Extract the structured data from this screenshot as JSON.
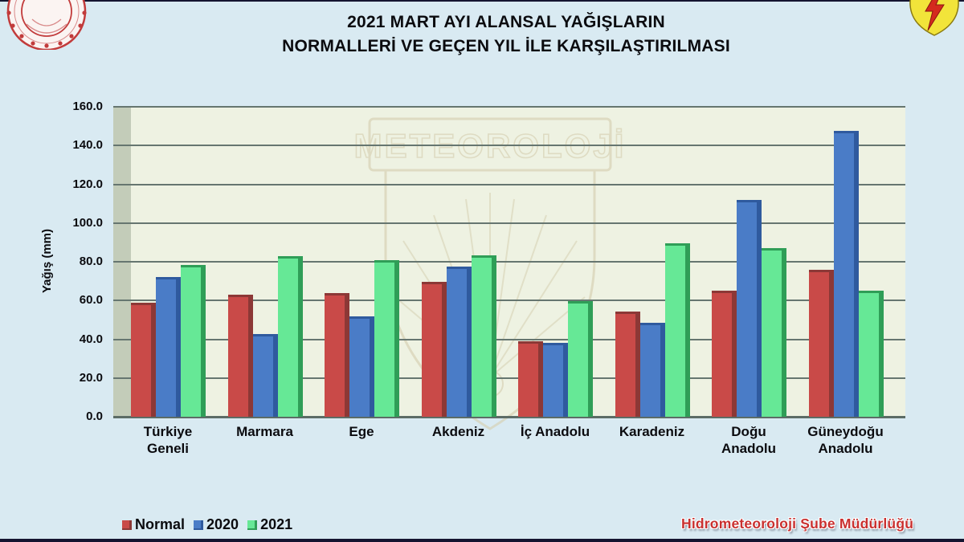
{
  "page": {
    "title_line1": "2021 MART AYI ALANSAL YAĞIŞLARIN",
    "title_line2": "NORMALLERİ VE GEÇEN YIL İLE KARŞILAŞTIRILMASI",
    "footer_credit": "Hidrometeoroloji Şube Müdürlüğü",
    "watermark_text": "METEOROLOJİ"
  },
  "logos": {
    "top_left": "meteoroloji-circular-seal",
    "top_right": "yellow-lightning-shield"
  },
  "colors": {
    "background": "#d9eaf2",
    "plot_bg": "#eef2e2",
    "wall": "#c3ccb9",
    "gridline": "#667670",
    "axis_line": "#5c6c66",
    "watermark": "#d6d0b2",
    "credit_red": "#c9302f",
    "series": [
      {
        "face": "#c94a48",
        "side": "#8c3836"
      },
      {
        "face": "#4a7cc7",
        "side": "#2f5a9e"
      },
      {
        "face": "#66e896",
        "side": "#2f9e57"
      }
    ]
  },
  "chart_data": {
    "type": "bar",
    "title": "2021 MART AYI ALANSAL YAĞIŞLARIN NORMALLERİ VE GEÇEN YIL İLE KARŞILAŞTIRILMASI",
    "xlabel": "",
    "ylabel": "Yağış (mm)",
    "ylim": [
      0,
      160
    ],
    "ytick_step": 20,
    "ytick_labels": [
      "0.0",
      "20.0",
      "40.0",
      "60.0",
      "80.0",
      "100.0",
      "120.0",
      "140.0",
      "160.0"
    ],
    "grid": true,
    "legend_position": "bottom-left",
    "categories": [
      "Türkiye Geneli",
      "Marmara",
      "Ege",
      "Akdeniz",
      "İç Anadolu",
      "Karadeniz",
      "Doğu Anadolu",
      "Güneydoğu Anadolu"
    ],
    "series": [
      {
        "name": "Normal",
        "values": [
          59,
          63,
          64,
          69.5,
          39,
          54.5,
          65,
          76
        ]
      },
      {
        "name": "2020",
        "values": [
          72,
          42.5,
          52,
          77.5,
          38,
          48.5,
          112,
          147.5
        ]
      },
      {
        "name": "2021",
        "values": [
          78.5,
          83,
          81,
          83.5,
          59.5,
          89.5,
          87,
          65
        ]
      }
    ]
  }
}
